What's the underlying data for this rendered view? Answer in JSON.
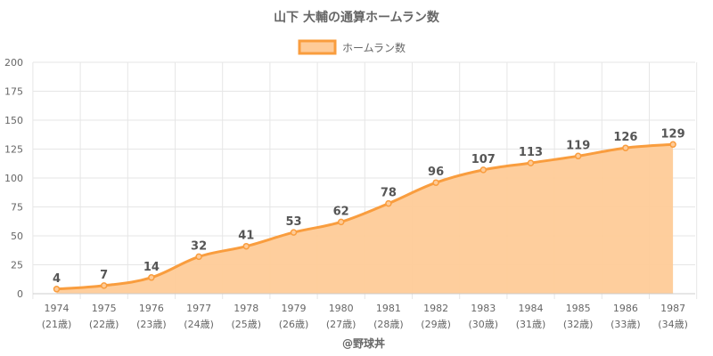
{
  "chart_data": {
    "type": "area",
    "title": "山下 大輔の通算ホームラン数",
    "legend": {
      "label": "ホームラン数",
      "placement": "top-center"
    },
    "categories": [
      "1974",
      "1975",
      "1976",
      "1977",
      "1978",
      "1979",
      "1980",
      "1981",
      "1982",
      "1983",
      "1984",
      "1985",
      "1986",
      "1987"
    ],
    "sublabels": [
      "(21歳)",
      "(22歳)",
      "(23歳)",
      "(24歳)",
      "(25歳)",
      "(26歳)",
      "(27歳)",
      "(28歳)",
      "(29歳)",
      "(30歳)",
      "(31歳)",
      "(32歳)",
      "(33歳)",
      "(34歳)"
    ],
    "series": [
      {
        "name": "ホームラン数",
        "values": [
          4,
          7,
          14,
          32,
          41,
          53,
          62,
          78,
          96,
          107,
          113,
          119,
          126,
          129
        ]
      }
    ],
    "ylim": [
      0,
      200
    ],
    "yticks": [
      0,
      25,
      50,
      75,
      100,
      125,
      150,
      175,
      200
    ],
    "grid": true,
    "xlabel": "",
    "ylabel": ""
  },
  "footer": {
    "credit": "@野球丼"
  },
  "colors": {
    "line": "#f99d3e",
    "fill": "#fecb98",
    "grid": "#e6e6e6",
    "text": "#666666",
    "label": "#555555"
  }
}
